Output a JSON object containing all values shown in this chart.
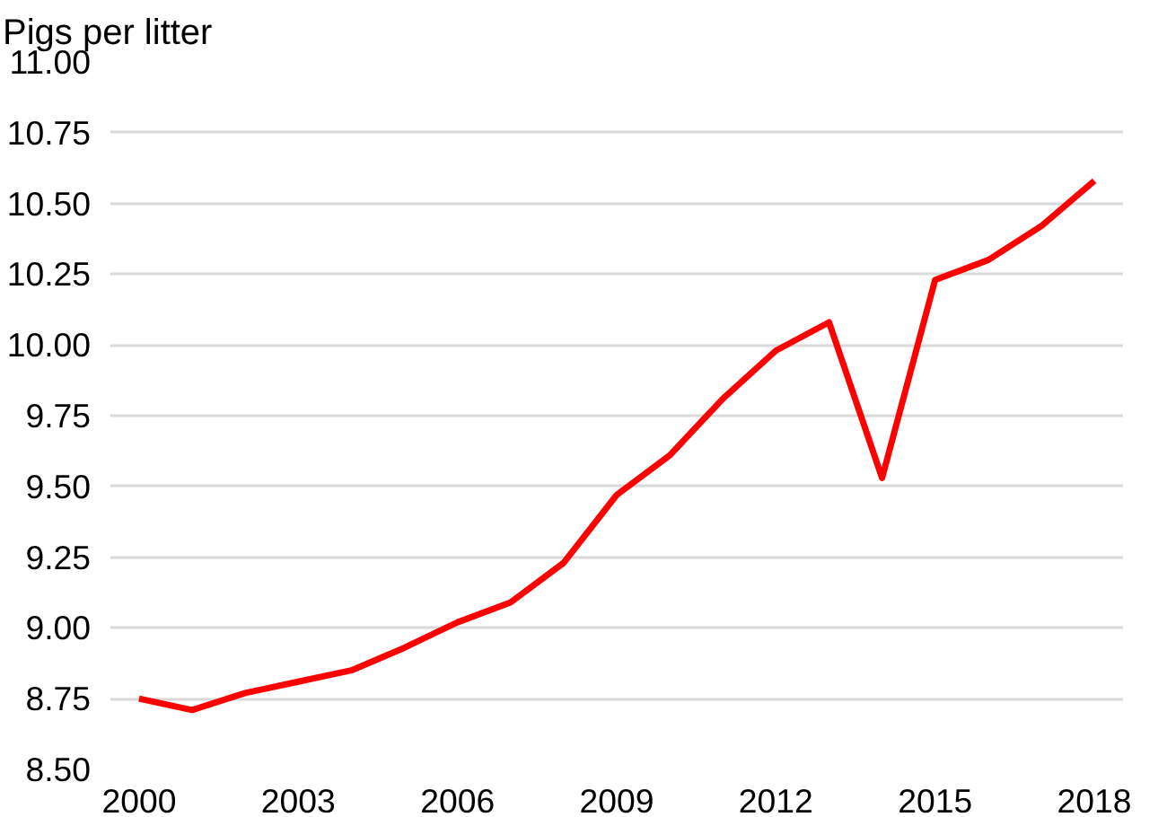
{
  "chart_data": {
    "type": "line",
    "ylabel": "Pigs per litter",
    "x": [
      2000,
      2001,
      2002,
      2003,
      2004,
      2005,
      2006,
      2007,
      2008,
      2009,
      2010,
      2011,
      2012,
      2013,
      2014,
      2015,
      2016,
      2017,
      2018
    ],
    "series": [
      {
        "color": "#ff0000",
        "values": [
          8.75,
          8.71,
          8.77,
          8.81,
          8.85,
          8.93,
          9.02,
          9.09,
          9.23,
          9.47,
          9.61,
          9.81,
          9.98,
          10.08,
          9.53,
          10.23,
          10.3,
          10.42,
          10.58
        ]
      }
    ],
    "xlim": [
      2000,
      2018
    ],
    "xticks": [
      2000,
      2003,
      2006,
      2009,
      2012,
      2015,
      2018
    ],
    "ylim": [
      8.5,
      11.0
    ],
    "yticks": [
      {
        "value": 8.5,
        "label": "8.50"
      },
      {
        "value": 8.75,
        "label": "8.75"
      },
      {
        "value": 9.0,
        "label": "9.00"
      },
      {
        "value": 9.25,
        "label": "9.25"
      },
      {
        "value": 9.5,
        "label": "9.50"
      },
      {
        "value": 9.75,
        "label": "9.75"
      },
      {
        "value": 10.0,
        "label": "10.00"
      },
      {
        "value": 10.25,
        "label": "10.25"
      },
      {
        "value": 10.5,
        "label": "10.50"
      },
      {
        "value": 10.75,
        "label": "10.75"
      },
      {
        "value": 11.0,
        "label": "11.00"
      }
    ],
    "grid": "y",
    "marker": "none",
    "line_style": "solid"
  }
}
